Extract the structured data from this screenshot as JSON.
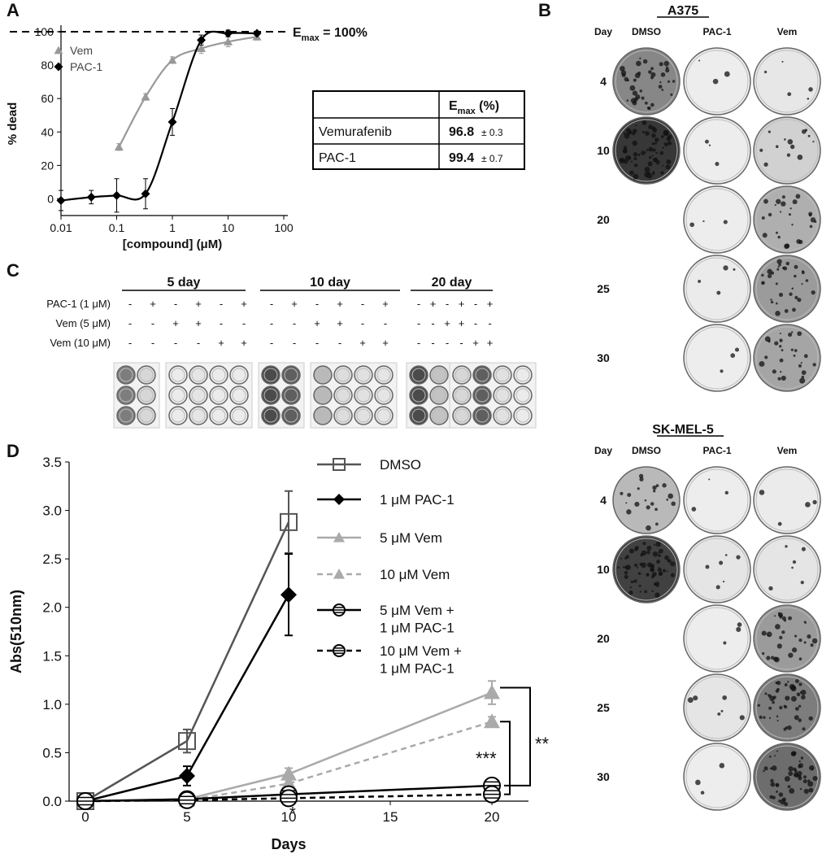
{
  "panel_labels": [
    "A",
    "B",
    "C",
    "D"
  ],
  "chart_data": [
    {
      "type": "scatter",
      "x_label": "[compound] (μM)",
      "y_label": "% dead",
      "log_x": true,
      "xlim": [
        0.01,
        100
      ],
      "xticks": [
        0.01,
        0.1,
        1,
        10,
        100
      ],
      "ylim": [
        -10,
        100
      ],
      "yticks": [
        0,
        20,
        40,
        60,
        80,
        100
      ],
      "emax_line": 100,
      "emax_label": {
        "symbol": "E",
        "subscript": "max",
        "text": " = 100%"
      },
      "series": [
        {
          "name": "Vem",
          "color": "#999999",
          "marker": "triangle",
          "x": [
            0.11,
            0.33,
            1,
            3.3,
            10,
            33
          ],
          "values": [
            31,
            61,
            83,
            90,
            94,
            97
          ],
          "errors": [
            2,
            2,
            2,
            3,
            3,
            2
          ]
        },
        {
          "name": "PAC-1",
          "color": "#000000",
          "marker": "diamond",
          "x": [
            0.01,
            0.035,
            0.1,
            0.33,
            1,
            3.3,
            10,
            33
          ],
          "values": [
            -1,
            1,
            2,
            3,
            46,
            95,
            99,
            99
          ],
          "errors": [
            6,
            4,
            10,
            9,
            8,
            3,
            2,
            1
          ]
        }
      ]
    },
    {
      "type": "line",
      "x_label": "Days",
      "y_label": "Abs(510nm)",
      "xlim": [
        -0.8,
        21.8
      ],
      "xticks": [
        0,
        5,
        10,
        15,
        20
      ],
      "ylim": [
        0,
        3.5
      ],
      "yticks": [
        {
          "value": 0,
          "label": "0.0"
        },
        0.5,
        {
          "value": 1,
          "label": "1.0"
        },
        1.5,
        {
          "value": 2,
          "label": "2.0"
        },
        2.5,
        {
          "value": 3,
          "label": "3.0"
        },
        3.5
      ],
      "x": [
        0,
        5,
        10,
        20
      ],
      "series": [
        {
          "name": "DMSO",
          "color": "#555555",
          "marker": "square",
          "dashed": false,
          "values": [
            0,
            0.62,
            2.88,
            null
          ],
          "errors": [
            0.02,
            0.12,
            0.32,
            null
          ]
        },
        {
          "name": "1 μM PAC-1",
          "color": "#000000",
          "marker": "diamond",
          "dashed": false,
          "values": [
            0,
            0.26,
            2.13,
            null
          ],
          "errors": [
            0.02,
            0.1,
            0.42,
            null
          ]
        },
        {
          "name": "5 μM Vem",
          "color": "#aaaaaa",
          "marker": "triangle",
          "dashed": false,
          "values": [
            0,
            0.02,
            0.28,
            1.12
          ],
          "errors": [
            0.01,
            0.02,
            0.06,
            0.12
          ]
        },
        {
          "name": "10 μM Vem",
          "color": "#aaaaaa",
          "marker": "triangle",
          "dashed": true,
          "values": [
            0,
            0.01,
            0.18,
            0.82
          ],
          "errors": [
            0.01,
            0.01,
            0.04,
            0.05
          ]
        },
        {
          "name": "5 μM Vem +\n1 μM PAC-1",
          "color": "#000000",
          "marker": "circle",
          "dashed": false,
          "values": [
            0,
            0.02,
            0.07,
            0.16
          ],
          "errors": [
            0.01,
            0.01,
            0.02,
            0.02
          ]
        },
        {
          "name": "10 μM Vem +\n1 μM PAC-1",
          "color": "#000000",
          "marker": "circle",
          "dashed": true,
          "values": [
            0,
            0.01,
            0.03,
            0.07
          ],
          "errors": [
            0.01,
            0.01,
            0.02,
            0.02
          ]
        }
      ],
      "annotations": [
        "**",
        "***",
        "*"
      ]
    }
  ],
  "table": {
    "header": {
      "symbol": "E",
      "subscript": "max",
      "unit": " (%)"
    },
    "rows": [
      {
        "name": "Vemurafenib",
        "value": 96.8,
        "error": "± 0.3"
      },
      {
        "name": "PAC-1",
        "value": 99.4,
        "error": "± 0.7"
      }
    ]
  },
  "panel_b": {
    "blocks": [
      {
        "title": "A375",
        "day_label": "Day",
        "columns": [
          "DMSO",
          "PAC-1",
          "Vem"
        ],
        "days": [
          4,
          10,
          20,
          25,
          30
        ]
      },
      {
        "title": "SK-MEL-5",
        "day_label": "Day",
        "columns": [
          "DMSO",
          "PAC-1",
          "Vem"
        ],
        "days": [
          4,
          10,
          20,
          25,
          30
        ]
      }
    ]
  },
  "panel_c": {
    "groups": [
      "5 day",
      "10 day",
      "20 day"
    ],
    "rows": [
      {
        "label": "PAC-1 (1 μM)",
        "signs": [
          "-",
          "+",
          "-",
          "+",
          "-",
          "+",
          "-",
          "+",
          "-",
          "+",
          "-",
          "+",
          "-",
          "+",
          "-",
          "+",
          "-",
          "+"
        ]
      },
      {
        "label": "Vem (5 μM)",
        "signs": [
          "-",
          "-",
          "+",
          "+",
          "-",
          "-",
          "-",
          "-",
          "+",
          "+",
          "-",
          "-",
          "-",
          "-",
          "+",
          "+",
          "-",
          "-"
        ]
      },
      {
        "label": "Vem (10 μM)",
        "signs": [
          "-",
          "-",
          "-",
          "-",
          "+",
          "+",
          "-",
          "-",
          "-",
          "-",
          "+",
          "+",
          "-",
          "-",
          "-",
          "-",
          "+",
          "+"
        ]
      }
    ]
  }
}
